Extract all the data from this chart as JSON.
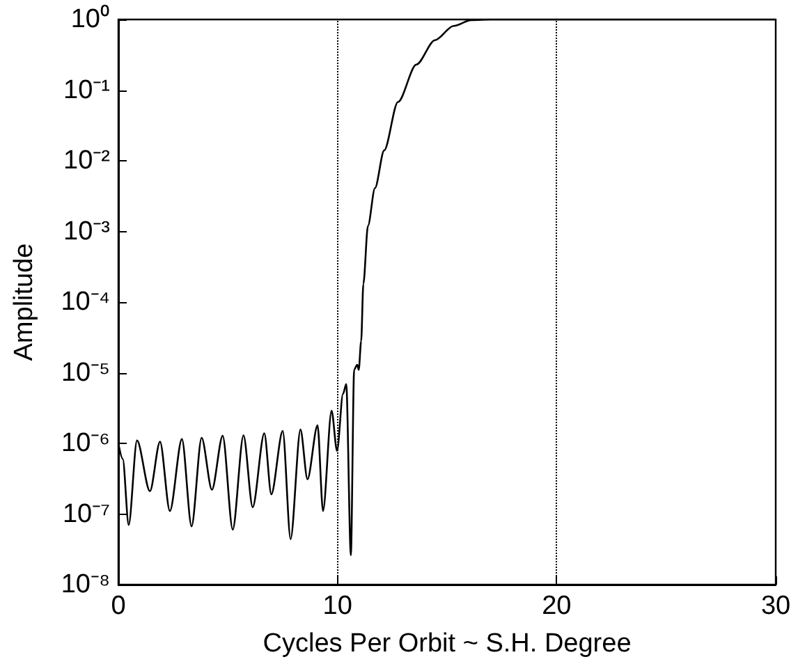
{
  "chart_data": {
    "type": "line",
    "xlabel": "Cycles Per Orbit ~ S.H. Degree",
    "ylabel": "Amplitude",
    "log": "y",
    "grid": false,
    "marker": "none",
    "line_style": "solid",
    "xlim": [
      0,
      30
    ],
    "xticks": [
      0,
      10,
      20,
      30
    ],
    "ylim": [
      1e-08,
      1
    ],
    "yticks": [
      {
        "value": 1e-08,
        "label": "10⁻⁸"
      },
      {
        "value": 1e-07,
        "label": "10⁻⁷"
      },
      {
        "value": 1e-06,
        "label": "10⁻⁶"
      },
      {
        "value": 1e-05,
        "label": "10⁻⁵"
      },
      {
        "value": 0.0001,
        "label": "10⁻⁴"
      },
      {
        "value": 0.001,
        "label": "10⁻³"
      },
      {
        "value": 0.01,
        "label": "10⁻²"
      },
      {
        "value": 0.1,
        "label": "10⁻¹"
      },
      {
        "value": 1,
        "label": "10⁰"
      }
    ],
    "ref_lines": [
      {
        "axis": "x",
        "value": 10,
        "line_style": "dotted",
        "color": "#000000"
      },
      {
        "axis": "x",
        "value": 20,
        "line_style": "dotted",
        "color": "#000000"
      }
    ],
    "series": [
      {
        "color": "#000000",
        "x": [
          0,
          0.2,
          0.47,
          0.85,
          1.44,
          1.9,
          2.35,
          2.9,
          3.34,
          3.8,
          4.27,
          4.76,
          5.22,
          5.71,
          6.13,
          6.66,
          6.98,
          7.5,
          7.86,
          8.31,
          8.63,
          9.09,
          9.34,
          9.73,
          9.98,
          10.25,
          10.4,
          10.61,
          10.76,
          10.9,
          10.97,
          11.08,
          11.18,
          11.39,
          11.71,
          12.13,
          12.76,
          13.6,
          14.45,
          15.3,
          16.1,
          17,
          30
        ],
        "values": [
          1e-06,
          6e-07,
          7e-08,
          1.1e-06,
          2.1e-07,
          1.06e-06,
          1.1e-07,
          1.15e-06,
          6.7e-08,
          1.2e-06,
          2.2e-07,
          1.28e-06,
          6e-08,
          1.3e-06,
          1.25e-07,
          1.39e-06,
          1.9e-07,
          1.5e-06,
          4.4e-08,
          1.57e-06,
          3.1e-07,
          1.8e-06,
          1.1e-07,
          2.9e-06,
          7.8e-07,
          5e-06,
          6.9e-06,
          2.6e-08,
          1.1e-05,
          1.3e-05,
          1.1e-05,
          2.8e-05,
          0.00018,
          0.0012,
          0.0041,
          0.014,
          0.068,
          0.23,
          0.51,
          0.81,
          0.98,
          1,
          1
        ]
      }
    ]
  }
}
